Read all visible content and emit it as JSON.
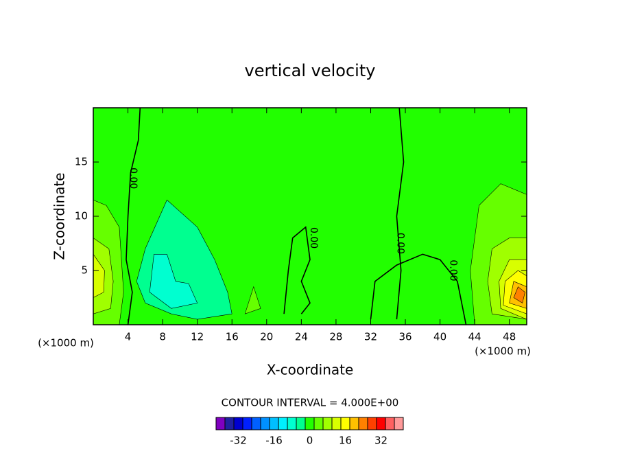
{
  "chart_data": {
    "type": "contour",
    "title": "vertical velocity",
    "x_label": "X-coordinate",
    "y_label": "Z-coordinate",
    "x_unit": "(×1000 m)",
    "y_unit": "(×1000 m)",
    "xlim": [
      0,
      50
    ],
    "ylim": [
      0,
      20
    ],
    "xticks": [
      4,
      8,
      12,
      16,
      20,
      24,
      28,
      32,
      36,
      40,
      44,
      48
    ],
    "yticks": [
      5,
      10,
      15
    ],
    "contour_interval_text": "CONTOUR INTERVAL = 4.000E+00",
    "colorbar": {
      "levels": [
        -42,
        -38,
        -34,
        -30,
        -26,
        -22,
        -18,
        -14,
        -10,
        -6,
        -2,
        2,
        6,
        10,
        14,
        18,
        22,
        26,
        30,
        34,
        38,
        42
      ],
      "colors": [
        "#8000c0",
        "#2020a0",
        "#0000d0",
        "#0020ff",
        "#0060ff",
        "#0090ff",
        "#00c0ff",
        "#00f0ff",
        "#00ffd0",
        "#00ff90",
        "#22ff00",
        "#66ff00",
        "#a0ff00",
        "#d8ff00",
        "#ffff00",
        "#ffc000",
        "#ff8000",
        "#ff4000",
        "#ff0000",
        "#ff6060",
        "#ff9a9a"
      ],
      "ticks": [
        -32,
        -16,
        0,
        16,
        32
      ]
    },
    "regions": [
      {
        "level": 0,
        "points": [
          [
            0,
            0
          ],
          [
            50,
            0
          ],
          [
            50,
            20
          ],
          [
            0,
            20
          ]
        ]
      },
      {
        "level": 4,
        "points": [
          [
            0,
            0
          ],
          [
            3,
            0
          ],
          [
            3.5,
            3
          ],
          [
            3,
            9
          ],
          [
            1.5,
            11
          ],
          [
            0,
            11.5
          ]
        ]
      },
      {
        "level": 8,
        "points": [
          [
            0,
            1
          ],
          [
            2,
            1.5
          ],
          [
            2.3,
            4
          ],
          [
            1.8,
            7
          ],
          [
            0,
            8
          ]
        ]
      },
      {
        "level": 12,
        "points": [
          [
            0,
            2.5
          ],
          [
            1.2,
            3
          ],
          [
            1.3,
            5
          ],
          [
            0,
            6.5
          ]
        ]
      },
      {
        "level": -4,
        "points": [
          [
            5,
            4
          ],
          [
            6,
            7
          ],
          [
            8.5,
            11.5
          ],
          [
            12,
            9
          ],
          [
            14,
            6
          ],
          [
            15.5,
            3
          ],
          [
            16,
            1
          ],
          [
            12,
            0.5
          ],
          [
            9,
            1
          ],
          [
            6,
            2
          ]
        ]
      },
      {
        "level": -8,
        "points": [
          [
            6.5,
            3
          ],
          [
            7,
            6.5
          ],
          [
            8.5,
            6.5
          ],
          [
            9.5,
            4
          ],
          [
            11,
            3.8
          ],
          [
            12,
            2
          ],
          [
            9,
            1.5
          ]
        ]
      },
      {
        "level": 4,
        "points": [
          [
            17.5,
            1
          ],
          [
            18.5,
            3.5
          ],
          [
            19.3,
            1.5
          ]
        ]
      },
      {
        "level": 4,
        "points": [
          [
            50,
            0
          ],
          [
            44,
            0
          ],
          [
            43.5,
            5
          ],
          [
            44.5,
            11
          ],
          [
            47,
            13
          ],
          [
            50,
            12
          ]
        ]
      },
      {
        "level": 8,
        "points": [
          [
            50,
            0.5
          ],
          [
            46,
            1
          ],
          [
            45.5,
            4
          ],
          [
            46,
            7
          ],
          [
            48,
            8
          ],
          [
            50,
            8
          ]
        ]
      },
      {
        "level": 12,
        "points": [
          [
            50,
            0.5
          ],
          [
            47,
            1.5
          ],
          [
            46.8,
            4
          ],
          [
            48,
            6
          ],
          [
            50,
            6
          ]
        ]
      },
      {
        "level": 16,
        "points": [
          [
            50,
            1
          ],
          [
            47.3,
            1.8
          ],
          [
            47.5,
            4
          ],
          [
            49,
            5
          ],
          [
            50,
            4.5
          ]
        ]
      },
      {
        "level": 20,
        "points": [
          [
            50,
            1.5
          ],
          [
            48,
            2
          ],
          [
            48.5,
            4
          ],
          [
            50,
            3.5
          ]
        ]
      },
      {
        "level": 24,
        "points": [
          [
            49.5,
            2
          ],
          [
            48.5,
            2.5
          ],
          [
            49,
            3.5
          ],
          [
            49.8,
            3
          ]
        ]
      }
    ],
    "lines": [
      {
        "level": 0,
        "points": [
          [
            4,
            0
          ],
          [
            4.5,
            3
          ],
          [
            3.8,
            6
          ],
          [
            4,
            10
          ],
          [
            4.3,
            14
          ],
          [
            5.2,
            17
          ],
          [
            5.4,
            20
          ]
        ]
      },
      {
        "level": 0,
        "points": [
          [
            35,
            0.5
          ],
          [
            35.5,
            5
          ],
          [
            35,
            10
          ],
          [
            35.8,
            15
          ],
          [
            35.3,
            20
          ]
        ]
      },
      {
        "level": 0,
        "points": [
          [
            22,
            1
          ],
          [
            22.5,
            5
          ],
          [
            23,
            8
          ],
          [
            24.5,
            9
          ],
          [
            25,
            6
          ],
          [
            24,
            4
          ],
          [
            25,
            2
          ],
          [
            24,
            1
          ]
        ]
      },
      {
        "level": 0,
        "points": [
          [
            32,
            0.5
          ],
          [
            32.5,
            4
          ],
          [
            35,
            5.5
          ],
          [
            38,
            6.5
          ],
          [
            40,
            6
          ],
          [
            42,
            4
          ],
          [
            43,
            0
          ]
        ]
      }
    ],
    "contour_labels": [
      {
        "text": "0.00",
        "x": 4.6,
        "y": 13.5
      },
      {
        "text": "0.00",
        "x": 35.4,
        "y": 7.5
      },
      {
        "text": "0.00",
        "x": 25.4,
        "y": 8
      },
      {
        "text": "0.00",
        "x": 41.5,
        "y": 5
      }
    ]
  }
}
